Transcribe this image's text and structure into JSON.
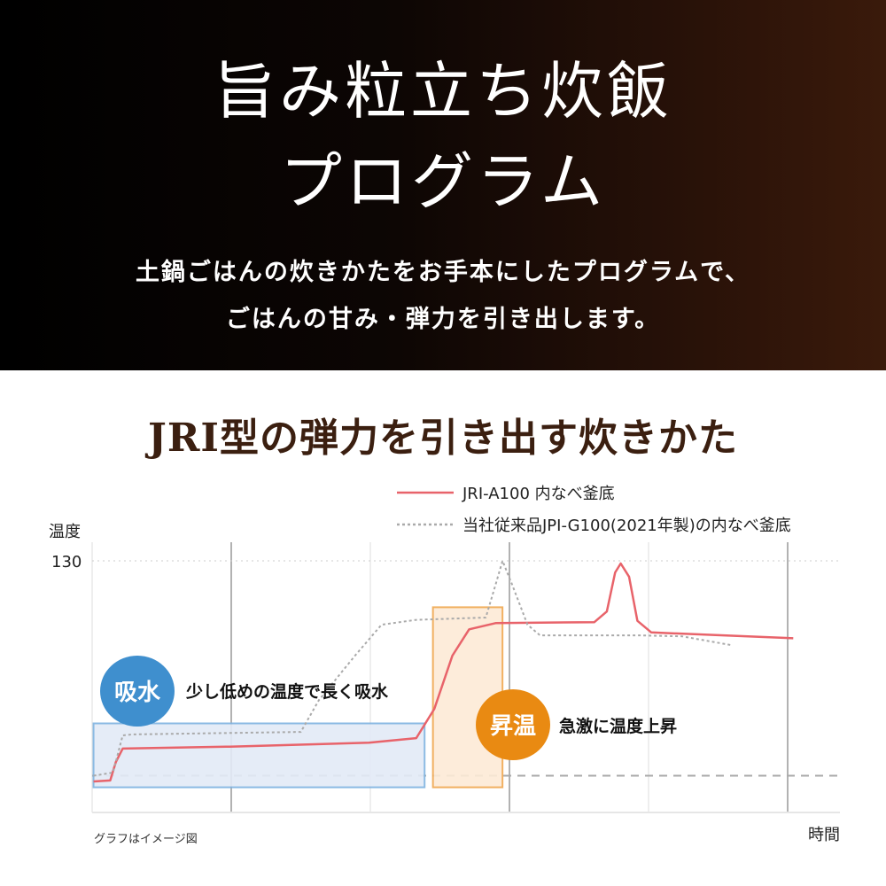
{
  "hero": {
    "title_line1": "旨み粒立ち炊飯",
    "title_line2": "プログラム",
    "subtitle_line1": "土鍋ごはんの炊きかたをお手本にしたプログラムで、",
    "subtitle_line2": "ごはんの甘み・弾力を引き出します。"
  },
  "section_title": "JRI型の弾力を引き出す炊きかた",
  "chart_data": {
    "type": "line",
    "title": "",
    "ylabel": "温度",
    "xlabel": "時間",
    "y_ticks": [
      130
    ],
    "grid": true,
    "legend_placement": "top-right",
    "note": "グラフはイメージ図",
    "series": [
      {
        "name": "JRI-A100 内なべ釜底",
        "color": "#e8636a",
        "style": "solid",
        "points": [
          [
            0.01,
            16
          ],
          [
            0.13,
            16.5
          ],
          [
            0.17,
            26
          ],
          [
            0.22,
            33
          ],
          [
            0.99,
            34
          ],
          [
            1.99,
            36
          ],
          [
            2.33,
            38.4
          ],
          [
            2.46,
            53.5
          ],
          [
            2.59,
            81
          ],
          [
            2.71,
            94.6
          ],
          [
            2.9,
            97.8
          ],
          [
            3.61,
            98.3
          ],
          [
            3.7,
            103.8
          ],
          [
            3.76,
            124
          ],
          [
            3.8,
            128.6
          ],
          [
            3.86,
            121.8
          ],
          [
            3.92,
            99
          ],
          [
            4.02,
            93
          ],
          [
            5.04,
            90
          ]
        ]
      },
      {
        "name": "当社従来品JPI-G100(2021年製)の内なべ釜底",
        "color": "#aaaaaa",
        "style": "dotted",
        "points": [
          [
            0.01,
            19
          ],
          [
            0.15,
            20.6
          ],
          [
            0.22,
            39.8
          ],
          [
            0.29,
            40.3
          ],
          [
            1.5,
            41.6
          ],
          [
            1.63,
            58
          ],
          [
            1.89,
            81
          ],
          [
            2.08,
            97
          ],
          [
            2.33,
            99.5
          ],
          [
            2.83,
            100.7
          ],
          [
            2.9,
            117.6
          ],
          [
            2.95,
            130
          ],
          [
            3.02,
            117.6
          ],
          [
            3.13,
            97
          ],
          [
            3.22,
            91.5
          ],
          [
            3.92,
            91.5
          ],
          [
            4.24,
            91
          ],
          [
            4.59,
            86.5
          ]
        ]
      }
    ],
    "reference_line": 19,
    "phases": [
      {
        "label": "吸水",
        "description": "少し低めの温度で長く吸水",
        "color": "#3f8fce",
        "x": [
          0.01,
          2.39
        ],
        "y": [
          13,
          46
        ]
      },
      {
        "label": "昇温",
        "description": "急激に温度上昇",
        "color": "#e98a12",
        "x": [
          2.45,
          2.95
        ],
        "y": [
          13,
          106
        ]
      }
    ]
  }
}
